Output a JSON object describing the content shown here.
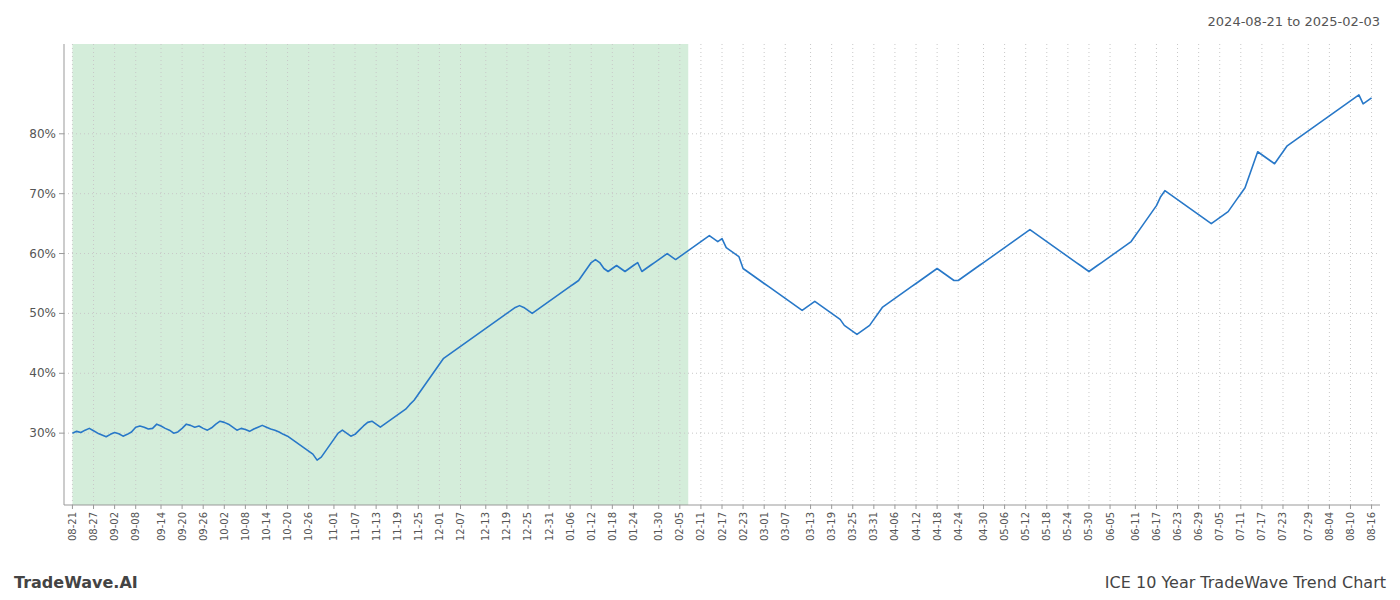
{
  "chart_data": {
    "type": "line",
    "title": "2024-08-21 to 2025-02-03",
    "annotations": [
      "TradeWave.AI",
      "ICE 10 Year TradeWave Trend Chart"
    ],
    "color": "#2878c8",
    "grid": true,
    "ylim": [
      18,
      95
    ],
    "yticks": [
      {
        "value": 30,
        "label": "30%"
      },
      {
        "value": 40,
        "label": "40%"
      },
      {
        "value": 50,
        "label": "50%"
      },
      {
        "value": 60,
        "label": "60%"
      },
      {
        "value": 70,
        "label": "70%"
      },
      {
        "value": 80,
        "label": "80%"
      }
    ],
    "span": {
      "start": 0,
      "end": 146,
      "color": "#d4edda"
    },
    "categories": [
      "08-21",
      null,
      null,
      null,
      null,
      "08-27",
      null,
      null,
      null,
      null,
      "09-02",
      null,
      null,
      null,
      null,
      "09-08",
      null,
      null,
      null,
      null,
      null,
      "09-14",
      null,
      null,
      null,
      null,
      "09-20",
      null,
      null,
      null,
      null,
      "09-26",
      null,
      null,
      null,
      null,
      "10-02",
      null,
      null,
      null,
      null,
      "10-08",
      null,
      null,
      null,
      null,
      "10-14",
      null,
      null,
      null,
      null,
      "10-20",
      null,
      null,
      null,
      null,
      "10-26",
      null,
      null,
      null,
      null,
      null,
      "11-01",
      null,
      null,
      null,
      null,
      "11-07",
      null,
      null,
      null,
      null,
      "11-13",
      null,
      null,
      null,
      null,
      "11-19",
      null,
      null,
      null,
      null,
      "11-25",
      null,
      null,
      null,
      null,
      "12-01",
      null,
      null,
      null,
      null,
      "12-07",
      null,
      null,
      null,
      null,
      null,
      "12-13",
      null,
      null,
      null,
      null,
      "12-19",
      null,
      null,
      null,
      null,
      "12-25",
      null,
      null,
      null,
      null,
      "12-31",
      null,
      null,
      null,
      null,
      "01-06",
      null,
      null,
      null,
      null,
      "01-12",
      null,
      null,
      null,
      null,
      "01-18",
      null,
      null,
      null,
      null,
      "01-24",
      null,
      null,
      null,
      null,
      null,
      "01-30",
      null,
      null,
      null,
      null,
      "02-05",
      null,
      null,
      null,
      null,
      "02-11",
      null,
      null,
      null,
      null,
      "02-17",
      null,
      null,
      null,
      null,
      "02-23",
      null,
      null,
      null,
      null,
      "03-01",
      null,
      null,
      null,
      null,
      "03-07",
      null,
      null,
      null,
      null,
      null,
      "03-13",
      null,
      null,
      null,
      null,
      "03-19",
      null,
      null,
      null,
      null,
      "03-25",
      null,
      null,
      null,
      null,
      "03-31",
      null,
      null,
      null,
      null,
      "04-06",
      null,
      null,
      null,
      null,
      "04-12",
      null,
      null,
      null,
      null,
      "04-18",
      null,
      null,
      null,
      null,
      "04-24",
      null,
      null,
      null,
      null,
      null,
      "04-30",
      null,
      null,
      null,
      null,
      "05-06",
      null,
      null,
      null,
      null,
      "05-12",
      null,
      null,
      null,
      null,
      "05-18",
      null,
      null,
      null,
      null,
      "05-24",
      null,
      null,
      null,
      null,
      "05-30",
      null,
      null,
      null,
      null,
      "06-05",
      null,
      null,
      null,
      null,
      null,
      "06-11",
      null,
      null,
      null,
      null,
      "06-17",
      null,
      null,
      null,
      null,
      "06-23",
      null,
      null,
      null,
      null,
      "06-29",
      null,
      null,
      null,
      null,
      "07-05",
      null,
      null,
      null,
      null,
      "07-11",
      null,
      null,
      null,
      null,
      "07-17",
      null,
      null,
      null,
      null,
      "07-23",
      null,
      null,
      null,
      null,
      null,
      "07-29",
      null,
      null,
      null,
      null,
      "08-04",
      null,
      null,
      null,
      null,
      "08-10",
      null,
      null,
      null,
      null,
      "08-16"
    ],
    "values": [
      30.0,
      30.3,
      30.1,
      30.5,
      30.8,
      30.4,
      30.0,
      29.7,
      29.4,
      29.8,
      30.1,
      29.9,
      29.5,
      29.8,
      30.2,
      31.0,
      31.2,
      31.0,
      30.7,
      30.8,
      31.5,
      31.2,
      30.8,
      30.5,
      30.0,
      30.2,
      30.8,
      31.5,
      31.3,
      31.0,
      31.2,
      30.8,
      30.5,
      30.9,
      31.5,
      32.0,
      31.8,
      31.5,
      31.0,
      30.5,
      30.8,
      30.6,
      30.3,
      30.7,
      31.0,
      31.3,
      31.0,
      30.7,
      30.5,
      30.2,
      29.8,
      29.5,
      29.0,
      28.5,
      28.0,
      27.5,
      27.0,
      26.5,
      25.5,
      26.0,
      27.0,
      28.0,
      29.0,
      30.0,
      30.5,
      30.0,
      29.5,
      29.8,
      30.5,
      31.2,
      31.8,
      32.0,
      31.5,
      31.0,
      31.5,
      32.0,
      32.5,
      33.0,
      33.5,
      34.0,
      34.8,
      35.5,
      36.5,
      37.5,
      38.5,
      39.5,
      40.5,
      41.5,
      42.5,
      43.0,
      43.5,
      44.0,
      44.5,
      45.0,
      45.5,
      46.0,
      46.5,
      47.0,
      47.5,
      48.0,
      48.5,
      49.0,
      49.5,
      50.0,
      50.5,
      51.0,
      51.3,
      51.0,
      50.5,
      50.0,
      50.5,
      51.0,
      51.5,
      52.0,
      52.5,
      53.0,
      53.5,
      54.0,
      54.5,
      55.0,
      55.5,
      56.5,
      57.5,
      58.5,
      59.0,
      58.5,
      57.5,
      57.0,
      57.5,
      58.0,
      57.5,
      57.0,
      57.5,
      58.0,
      58.5,
      57.0,
      57.5,
      58.0,
      58.5,
      59.0,
      59.5,
      60.0,
      59.5,
      59.0,
      59.5,
      60.0,
      60.5,
      61.0,
      61.5,
      62.0,
      62.5,
      63.0,
      62.5,
      62.0,
      62.5,
      61.0,
      60.5,
      60.0,
      59.5,
      57.5,
      57.0,
      56.5,
      56.0,
      55.5,
      55.0,
      54.5,
      54.0,
      53.5,
      53.0,
      52.5,
      52.0,
      51.5,
      51.0,
      50.5,
      51.0,
      51.5,
      52.0,
      51.5,
      51.0,
      50.5,
      50.0,
      49.5,
      49.0,
      48.0,
      47.5,
      47.0,
      46.5,
      47.0,
      47.5,
      48.0,
      49.0,
      50.0,
      51.0,
      51.5,
      52.0,
      52.5,
      53.0,
      53.5,
      54.0,
      54.5,
      55.0,
      55.5,
      56.0,
      56.5,
      57.0,
      57.5,
      57.0,
      56.5,
      56.0,
      55.5,
      55.5,
      56.0,
      56.5,
      57.0,
      57.5,
      58.0,
      58.5,
      59.0,
      59.5,
      60.0,
      60.5,
      61.0,
      61.5,
      62.0,
      62.5,
      63.0,
      63.5,
      64.0,
      63.5,
      63.0,
      62.5,
      62.0,
      61.5,
      61.0,
      60.5,
      60.0,
      59.5,
      59.0,
      58.5,
      58.0,
      57.5,
      57.0,
      57.5,
      58.0,
      58.5,
      59.0,
      59.5,
      60.0,
      60.5,
      61.0,
      61.5,
      62.0,
      63.0,
      64.0,
      65.0,
      66.0,
      67.0,
      68.0,
      69.5,
      70.5,
      70.0,
      69.5,
      69.0,
      68.5,
      68.0,
      67.5,
      67.0,
      66.5,
      66.0,
      65.5,
      65.0,
      65.5,
      66.0,
      66.5,
      67.0,
      68.0,
      69.0,
      70.0,
      71.0,
      73.0,
      75.0,
      77.0,
      76.5,
      76.0,
      75.5,
      75.0,
      76.0,
      77.0,
      78.0,
      78.5,
      79.0,
      79.5,
      80.0,
      80.5,
      81.0,
      81.5,
      82.0,
      82.5,
      83.0,
      83.5,
      84.0,
      84.5,
      85.0,
      85.5,
      86.0,
      86.5,
      85.0,
      85.5,
      86.0
    ]
  }
}
